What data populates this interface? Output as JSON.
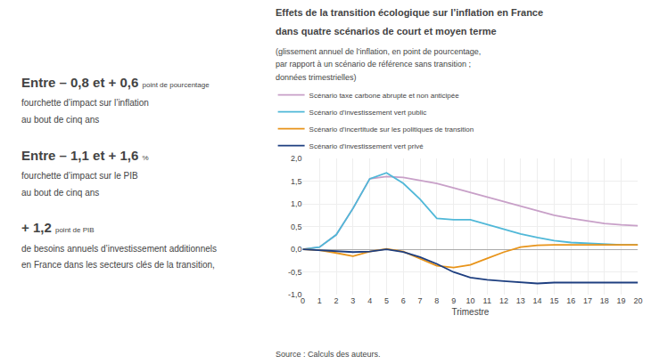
{
  "chart_data": {
    "type": "line",
    "title": [
      "Effets de la transition écologique sur l’inflation en France",
      "dans quatre scénarios de court et moyen terme"
    ],
    "subtitle": [
      "(glissement annuel de l’inflation, en point de pourcentage,",
      "par rapport à un scénario de référence sans transition ;",
      "données trimestrielles)"
    ],
    "x_label": "Trimestre",
    "annotations": {
      "key_figures": [
        [
          "Entre – 0,8 et + 0,6",
          "point de pourcentage",
          "fourchette d’impact sur l’inflation",
          "au bout de cinq ans"
        ],
        [
          "Entre – 1,1 et + 1,6",
          "%",
          "fourchette d’impact sur le PIB",
          "au bout de cinq ans"
        ],
        [
          "+ 1,2",
          "point de PIB",
          "de besoins annuels d’investissement additionnels",
          "en France dans les secteurs clés de la transition,"
        ]
      ],
      "source": "Source : Calculs des auteurs."
    },
    "x": [
      0,
      1,
      2,
      3,
      4,
      5,
      6,
      7,
      8,
      9,
      10,
      11,
      12,
      13,
      14,
      15,
      16,
      17,
      18,
      19,
      20
    ],
    "xlim": [
      0,
      20
    ],
    "xticks": [
      0,
      1,
      2,
      3,
      4,
      5,
      6,
      7,
      8,
      9,
      10,
      11,
      12,
      13,
      14,
      15,
      16,
      17,
      18,
      19,
      20
    ],
    "ylim": [
      -1.0,
      2.0
    ],
    "yticks": [
      {
        "value": -1.0,
        "label": "-1,0"
      },
      {
        "value": -0.5,
        "label": "-0,5"
      },
      {
        "value": 0.0,
        "label": "0,0"
      },
      {
        "value": 0.5,
        "label": "0,5"
      },
      {
        "value": 1.0,
        "label": "1,0"
      },
      {
        "value": 1.5,
        "label": "1,5"
      },
      {
        "value": 2.0,
        "label": "2,0"
      }
    ],
    "grid": true,
    "legend": "top",
    "series": [
      {
        "name": "Scénario taxe carbone abrupte et non anticipée",
        "color": "#c8a0c8",
        "values": [
          0.0,
          0.05,
          0.32,
          0.9,
          1.55,
          1.6,
          1.58,
          1.52,
          1.45,
          1.35,
          1.25,
          1.15,
          1.05,
          0.95,
          0.85,
          0.75,
          0.68,
          0.62,
          0.57,
          0.54,
          0.52
        ]
      },
      {
        "name": "Scénario d’investissement vert public",
        "color": "#50b8d8",
        "values": [
          0.0,
          0.05,
          0.32,
          0.9,
          1.55,
          1.68,
          1.45,
          1.1,
          0.68,
          0.65,
          0.65,
          0.55,
          0.44,
          0.34,
          0.26,
          0.19,
          0.15,
          0.13,
          0.11,
          0.1,
          0.1
        ]
      },
      {
        "name": "Scénario d’incertitude sur les politiques de transition",
        "color": "#e8941a",
        "values": [
          0.0,
          -0.02,
          -0.08,
          -0.15,
          -0.05,
          0.01,
          -0.05,
          -0.2,
          -0.36,
          -0.4,
          -0.34,
          -0.2,
          -0.06,
          0.05,
          0.09,
          0.1,
          0.1,
          0.1,
          0.1,
          0.1,
          0.1
        ]
      },
      {
        "name": "Scénario d’investissement vert privé",
        "color": "#1e3f80",
        "values": [
          0.0,
          -0.02,
          -0.05,
          -0.06,
          -0.05,
          0.0,
          -0.06,
          -0.17,
          -0.32,
          -0.5,
          -0.62,
          -0.67,
          -0.7,
          -0.73,
          -0.75,
          -0.73,
          -0.73,
          -0.73,
          -0.73,
          -0.73,
          -0.73
        ]
      }
    ]
  }
}
